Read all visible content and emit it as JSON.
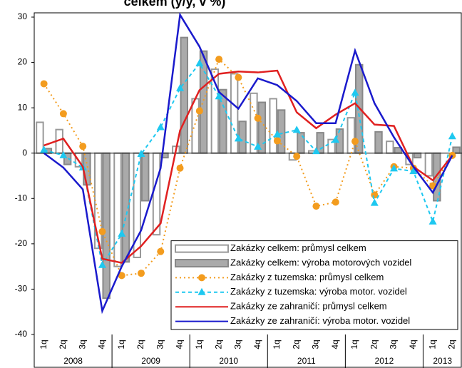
{
  "chart_data": {
    "type": "bar",
    "title": "celkem (y/y, v %)",
    "categories": [
      "1q",
      "2q",
      "3q",
      "4q",
      "1q",
      "2q",
      "3q",
      "4q",
      "1q",
      "2q",
      "3q",
      "4q",
      "1q",
      "2q",
      "3q",
      "4q",
      "1q",
      "2q",
      "3q",
      "4q",
      "1q",
      "2q"
    ],
    "years": [
      "2008",
      "2009",
      "2010",
      "2011",
      "2012",
      "2013"
    ],
    "ylim": [
      -40,
      30
    ],
    "yticks": [
      -40,
      -30,
      -20,
      -10,
      0,
      10,
      20,
      30
    ],
    "grid": false,
    "legend": "lower right",
    "series": [
      {
        "name": "Zakázky celkem: průmysl celkem",
        "type": "bar",
        "color": "#ffffff",
        "edge": "#999999",
        "values": [
          6.8,
          5.2,
          -3,
          -21,
          -25,
          -23,
          -18,
          1.5,
          12,
          18.5,
          17.5,
          13.2,
          12,
          -1.5,
          0.5,
          3,
          7.8,
          0,
          2.6,
          -2.5,
          -5,
          0
        ]
      },
      {
        "name": "Zakázky celkem: výroba motorových vozidel",
        "type": "bar",
        "color": "#aaaaaa",
        "edge": "#888888",
        "values": [
          1,
          -2.5,
          -7,
          -32,
          -24,
          -10.5,
          -1,
          25.5,
          22.5,
          14,
          7,
          11.2,
          9.5,
          4.5,
          4.5,
          5.3,
          19.5,
          4.7,
          1.2,
          -1,
          -10.5,
          1.3
        ]
      },
      {
        "name": "Zakázky z tuzemska: průmysl celkem",
        "type": "line",
        "color": "#f39c1e",
        "dash": "2 4",
        "marker": "circle",
        "values": [
          15.3,
          8.7,
          1.5,
          -17.3,
          -27,
          -26.5,
          -21.7,
          -3.3,
          9.3,
          20.7,
          16.7,
          7.7,
          2.7,
          -0.7,
          -11.7,
          -10.8,
          2.6,
          -9.2,
          -3,
          -3.3,
          -7.2,
          -0.5
        ]
      },
      {
        "name": "Zakázky z tuzemska: výroba motor. vozidel",
        "type": "line",
        "color": "#1ec8f0",
        "dash": "5 4",
        "marker": "triangle",
        "values": [
          0.7,
          -0.5,
          -3.2,
          -24.7,
          -17.8,
          -0.2,
          5.7,
          14.3,
          19.8,
          12.5,
          3.2,
          1.4,
          4.1,
          5.1,
          0.4,
          2.9,
          13.3,
          -11,
          -3.4,
          -4,
          -15.1,
          3.7
        ]
      },
      {
        "name": "Zakázky ze zahraničí: průmysl celkem",
        "type": "line",
        "color": "#e02020",
        "values": [
          1.7,
          3.2,
          -3,
          -23.3,
          -24.2,
          -20.5,
          -15.5,
          5,
          13.9,
          17.5,
          18,
          17.8,
          18.2,
          9,
          5.5,
          8.5,
          11,
          6.3,
          6,
          -3,
          -6,
          -0.5
        ]
      },
      {
        "name": "Zakázky ze zahraničí: výroba motor. vozidel",
        "type": "line",
        "color": "#1a1acc",
        "values": [
          0,
          -3.2,
          -8,
          -34.8,
          -25,
          -17,
          -3.3,
          30.5,
          23.5,
          13.5,
          9.8,
          16.5,
          15,
          11.5,
          6.6,
          6.6,
          22.6,
          11,
          3.5,
          -3,
          -8.7,
          -0.5
        ]
      }
    ]
  }
}
